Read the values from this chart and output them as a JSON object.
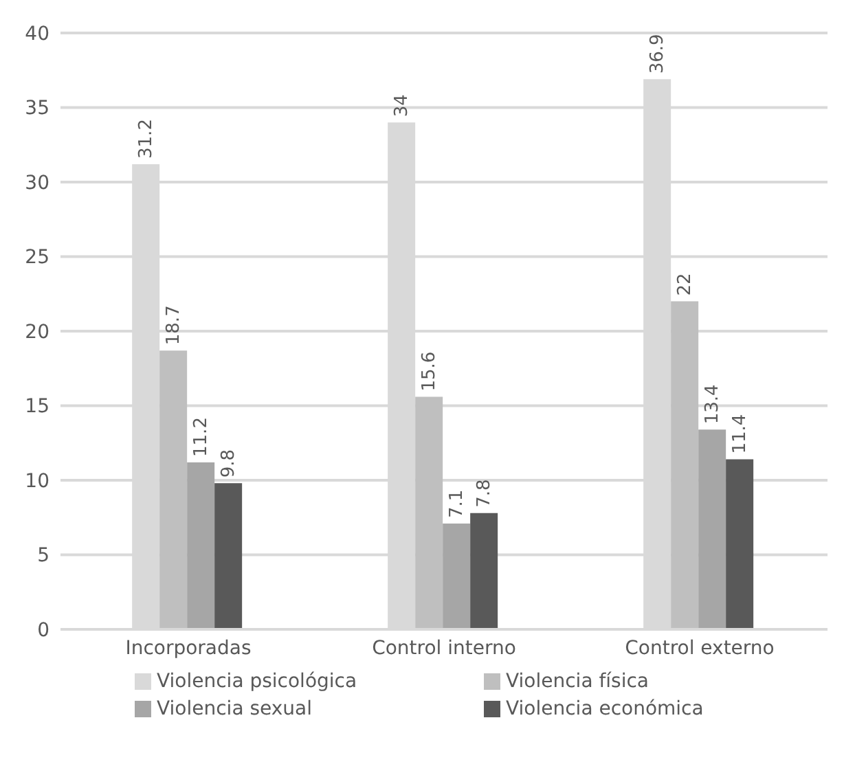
{
  "chart_data": {
    "type": "bar",
    "categories": [
      "Incorporadas",
      "Control interno",
      "Control externo"
    ],
    "series": [
      {
        "name": "Violencia psicológica",
        "color": "#d9d9d9",
        "values": [
          31.2,
          34,
          36.9
        ]
      },
      {
        "name": "Violencia física",
        "color": "#bfbfbf",
        "values": [
          18.7,
          15.6,
          22
        ]
      },
      {
        "name": "Violencia sexual",
        "color": "#a6a6a6",
        "values": [
          11.2,
          7.1,
          13.4
        ]
      },
      {
        "name": "Violencia económica",
        "color": "#595959",
        "values": [
          9.8,
          7.8,
          11.4
        ]
      }
    ],
    "ylim": [
      0,
      40
    ],
    "yticks": [
      0,
      5,
      10,
      15,
      20,
      25,
      30,
      35,
      40
    ],
    "grid": "y",
    "legend": "bottom",
    "data_labels": true
  }
}
